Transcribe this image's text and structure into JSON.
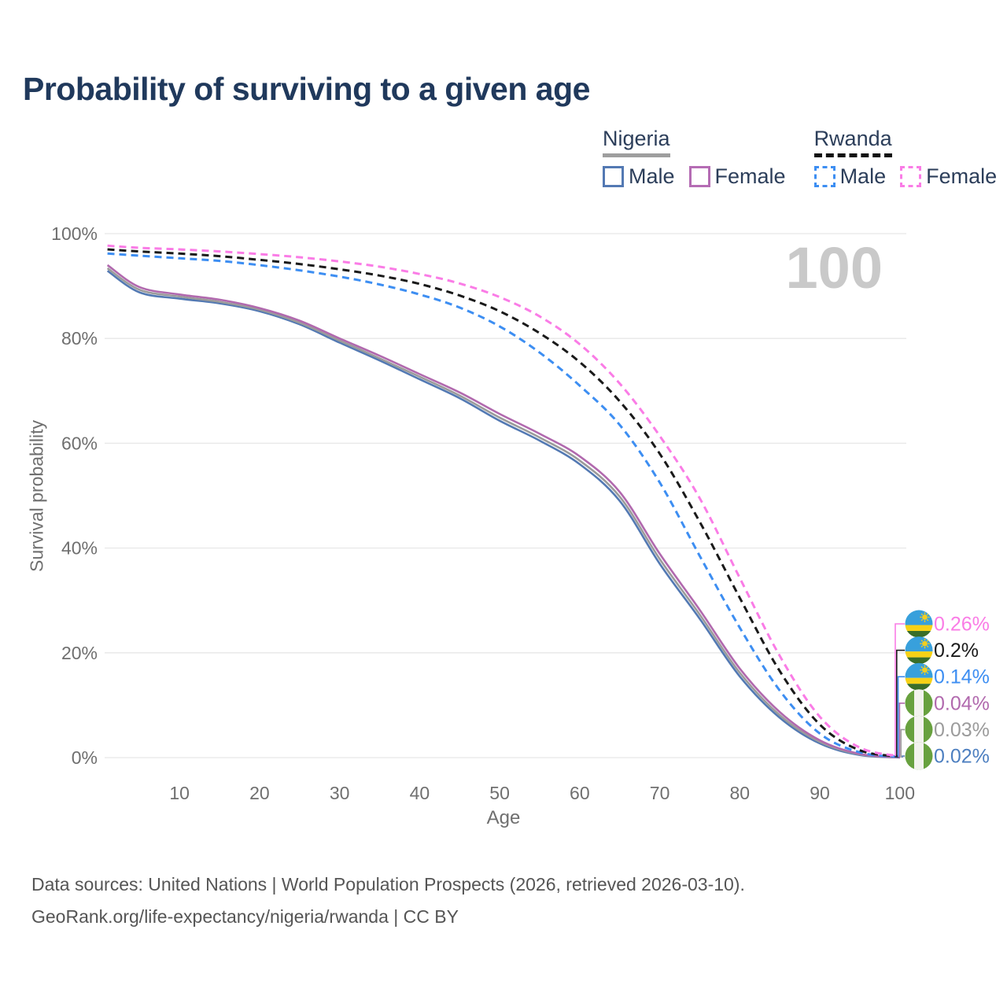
{
  "title": "Probability of surviving to a given age",
  "watermark": "100",
  "colors": {
    "title": "#20395c",
    "grid": "#e7e7e7",
    "axis_text": "#6f6f6f",
    "watermark": "#c9c9c9",
    "footer_text": "#555555"
  },
  "legend": {
    "groups": [
      {
        "country": "Nigeria",
        "underline_style": "solid",
        "underline_color": "#9e9e9e",
        "items": [
          {
            "label": "Male",
            "color": "#5379b3",
            "dashed": false
          },
          {
            "label": "Female",
            "color": "#b56cb4",
            "dashed": false
          }
        ]
      },
      {
        "country": "Rwanda",
        "underline_style": "dashed",
        "underline_color": "#111111",
        "items": [
          {
            "label": "Male",
            "color": "#3d8ef2",
            "dashed": true
          },
          {
            "label": "Female",
            "color": "#fa7ce6",
            "dashed": true
          }
        ]
      }
    ]
  },
  "chart_data": {
    "type": "line",
    "xlabel": "Age",
    "ylabel": "Survival probability",
    "xlim": [
      1,
      100
    ],
    "ylim": [
      0,
      100
    ],
    "grid": "horizontal",
    "xticks": [
      {
        "label": "10",
        "value": 10
      },
      {
        "label": "20",
        "value": 20
      },
      {
        "label": "30",
        "value": 30
      },
      {
        "label": "40",
        "value": 40
      },
      {
        "label": "50",
        "value": 50
      },
      {
        "label": "60",
        "value": 60
      },
      {
        "label": "70",
        "value": 70
      },
      {
        "label": "80",
        "value": 80
      },
      {
        "label": "90",
        "value": 90
      },
      {
        "label": "100",
        "value": 100
      }
    ],
    "yticks": [
      {
        "label": "0%",
        "value": 0
      },
      {
        "label": "20%",
        "value": 20
      },
      {
        "label": "40%",
        "value": 40
      },
      {
        "label": "60%",
        "value": 60
      },
      {
        "label": "80%",
        "value": 80
      },
      {
        "label": "100%",
        "value": 100
      }
    ],
    "x": [
      1,
      5,
      10,
      15,
      20,
      25,
      30,
      35,
      40,
      45,
      50,
      55,
      60,
      65,
      70,
      75,
      80,
      85,
      90,
      95,
      100
    ],
    "series": [
      {
        "id": "nigeria-male",
        "name": "Nigeria Male",
        "color": "#5379b3",
        "label_color": "#4d7fc0",
        "dashed": false,
        "flag": "nigeria",
        "end_label": "0.02%",
        "values": [
          92.9,
          88.8,
          87.6,
          86.7,
          85.2,
          82.7,
          79.2,
          75.8,
          72.2,
          68.6,
          64.3,
          60.5,
          56.0,
          49.0,
          37.0,
          26.5,
          15.5,
          7.6,
          2.7,
          0.5,
          0.02
        ]
      },
      {
        "id": "nigeria-all",
        "name": "Nigeria",
        "color": "#9b9b9b",
        "label_color": "#9b9b9b",
        "dashed": false,
        "flag": "nigeria",
        "end_label": "0.03%",
        "values": [
          93.4,
          89.3,
          88.0,
          87.0,
          85.5,
          83.0,
          79.6,
          76.2,
          72.7,
          69.1,
          64.9,
          61.1,
          56.7,
          49.8,
          37.9,
          27.3,
          16.2,
          8.1,
          3.0,
          0.6,
          0.03
        ]
      },
      {
        "id": "nigeria-female",
        "name": "Nigeria Female",
        "color": "#b169ae",
        "label_color": "#b169ae",
        "dashed": false,
        "flag": "nigeria",
        "end_label": "0.04%",
        "values": [
          94.0,
          89.8,
          88.4,
          87.4,
          85.8,
          83.4,
          80.0,
          76.7,
          73.2,
          69.7,
          65.6,
          61.8,
          57.5,
          50.7,
          38.9,
          28.2,
          17.0,
          8.7,
          3.3,
          0.7,
          0.04
        ]
      },
      {
        "id": "rwanda-male",
        "name": "Rwanda Male",
        "color": "#3d8ef2",
        "label_color": "#3d8ef2",
        "dashed": true,
        "flag": "rwanda",
        "end_label": "0.14%",
        "values": [
          96.2,
          95.8,
          95.3,
          94.8,
          94.0,
          93.0,
          91.8,
          90.3,
          88.4,
          85.9,
          82.3,
          77.3,
          71.0,
          63.5,
          52.5,
          38.5,
          24.8,
          12.8,
          4.6,
          1.0,
          0.14
        ]
      },
      {
        "id": "rwanda-all",
        "name": "Rwanda",
        "color": "#1a1a1a",
        "label_color": "#1a1a1a",
        "dashed": true,
        "flag": "rwanda",
        "end_label": "0.2%",
        "values": [
          97.0,
          96.6,
          96.2,
          95.7,
          95.0,
          94.2,
          93.2,
          92.0,
          90.4,
          88.2,
          85.2,
          81.0,
          75.5,
          68.0,
          58.0,
          45.0,
          30.5,
          16.5,
          6.3,
          1.4,
          0.2
        ]
      },
      {
        "id": "rwanda-female",
        "name": "Rwanda Female",
        "color": "#fa7ce6",
        "label_color": "#fa7ce6",
        "dashed": true,
        "flag": "rwanda",
        "end_label": "0.26%",
        "values": [
          97.7,
          97.3,
          97.0,
          96.6,
          96.1,
          95.5,
          94.7,
          93.7,
          92.3,
          90.5,
          87.9,
          84.2,
          78.9,
          71.4,
          61.4,
          49.5,
          34.3,
          19.4,
          7.8,
          1.9,
          0.26
        ]
      }
    ]
  },
  "footer": {
    "lines": [
      "Data sources: United Nations | World Population Prospects (2026, retrieved 2026-03-10).",
      "GeoRank.org/life-expectancy/nigeria/rwanda | CC BY"
    ]
  }
}
